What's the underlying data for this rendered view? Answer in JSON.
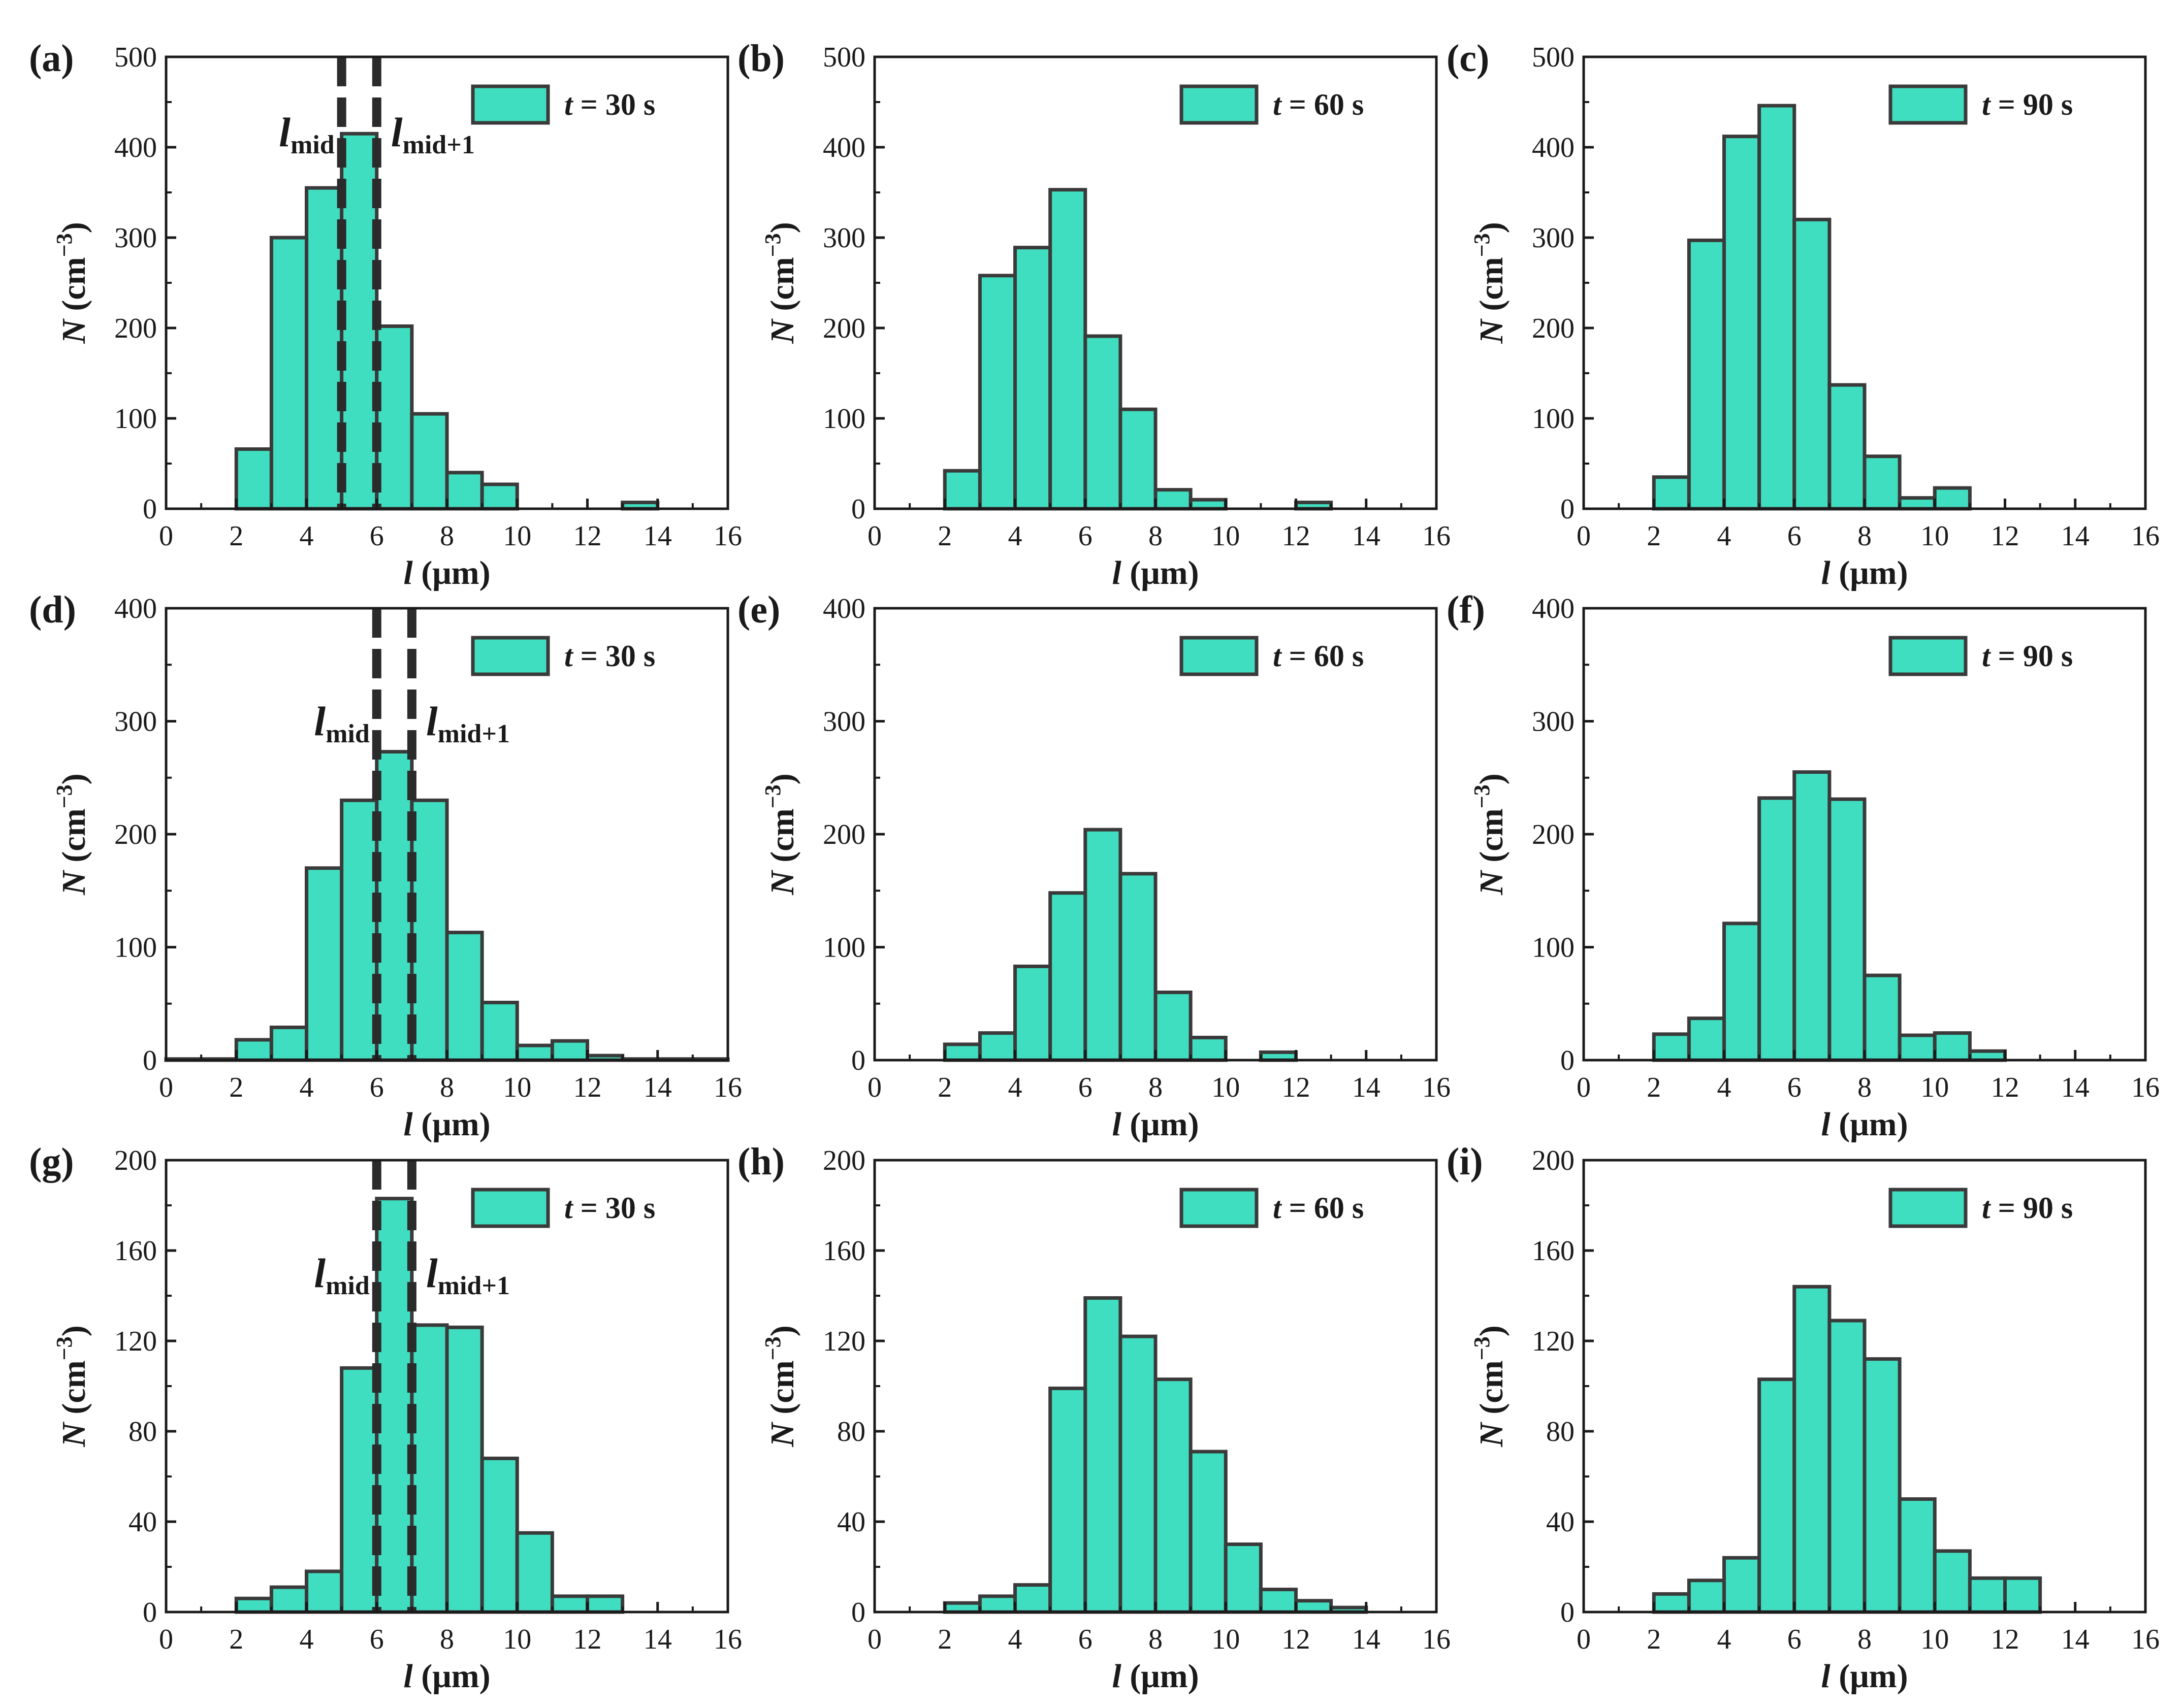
{
  "chart_data": [
    {
      "id": "a",
      "panel_label": "(a)",
      "type": "bar",
      "title": "",
      "xlabel_var": "l",
      "xlabel_unit": " (μm)",
      "ylabel_var": "N",
      "ylabel_unit": " (cm",
      "ylabel_exp": "−3",
      "ylabel_close": ")",
      "xlim": [
        0,
        16
      ],
      "ylim": [
        0,
        500
      ],
      "xticks": [
        "0",
        "2",
        "4",
        "6",
        "8",
        "10",
        "12",
        "14",
        "16"
      ],
      "yticks": [
        "0",
        "100",
        "200",
        "300",
        "400",
        "500"
      ],
      "bin_width": 1,
      "bins": [
        {
          "start": 2,
          "value": 66
        },
        {
          "start": 3,
          "value": 300
        },
        {
          "start": 4,
          "value": 355
        },
        {
          "start": 5,
          "value": 415
        },
        {
          "start": 6,
          "value": 202
        },
        {
          "start": 7,
          "value": 105
        },
        {
          "start": 8,
          "value": 40
        },
        {
          "start": 9,
          "value": 27
        },
        {
          "start": 13,
          "value": 7
        }
      ],
      "legend": {
        "var": "t",
        "text": " = 30 s",
        "position": "top-right"
      },
      "annotation": {
        "lmid_x": 5,
        "lmid1_x": 6,
        "lmid_label": "l",
        "lmid_sub": "mid",
        "lmid1_label": "l",
        "lmid1_sub": "mid+1"
      }
    },
    {
      "id": "b",
      "panel_label": "(b)",
      "type": "bar",
      "title": "",
      "xlabel_var": "l",
      "xlabel_unit": " (μm)",
      "ylabel_var": "N",
      "ylabel_unit": " (cm",
      "ylabel_exp": "−3",
      "ylabel_close": ")",
      "xlim": [
        0,
        16
      ],
      "ylim": [
        0,
        500
      ],
      "xticks": [
        "0",
        "2",
        "4",
        "6",
        "8",
        "10",
        "12",
        "14",
        "16"
      ],
      "yticks": [
        "0",
        "100",
        "200",
        "300",
        "400",
        "500"
      ],
      "bin_width": 1,
      "bins": [
        {
          "start": 2,
          "value": 42
        },
        {
          "start": 3,
          "value": 258
        },
        {
          "start": 4,
          "value": 289
        },
        {
          "start": 5,
          "value": 353
        },
        {
          "start": 6,
          "value": 191
        },
        {
          "start": 7,
          "value": 110
        },
        {
          "start": 8,
          "value": 21
        },
        {
          "start": 9,
          "value": 10
        },
        {
          "start": 12,
          "value": 7
        }
      ],
      "legend": {
        "var": "t",
        "text": " = 60 s",
        "position": "top-right"
      }
    },
    {
      "id": "c",
      "panel_label": "(c)",
      "type": "bar",
      "title": "",
      "xlabel_var": "l",
      "xlabel_unit": " (μm)",
      "ylabel_var": "N",
      "ylabel_unit": " (cm",
      "ylabel_exp": "−3",
      "ylabel_close": ")",
      "xlim": [
        0,
        16
      ],
      "ylim": [
        0,
        500
      ],
      "xticks": [
        "0",
        "2",
        "4",
        "6",
        "8",
        "10",
        "12",
        "14",
        "16"
      ],
      "yticks": [
        "0",
        "100",
        "200",
        "300",
        "400",
        "500"
      ],
      "bin_width": 1,
      "bins": [
        {
          "start": 2,
          "value": 35
        },
        {
          "start": 3,
          "value": 297
        },
        {
          "start": 4,
          "value": 412
        },
        {
          "start": 5,
          "value": 446
        },
        {
          "start": 6,
          "value": 320
        },
        {
          "start": 7,
          "value": 137
        },
        {
          "start": 8,
          "value": 58
        },
        {
          "start": 9,
          "value": 12
        },
        {
          "start": 10,
          "value": 23
        }
      ],
      "legend": {
        "var": "t",
        "text": " = 90 s",
        "position": "top-right"
      }
    },
    {
      "id": "d",
      "panel_label": "(d)",
      "type": "bar",
      "title": "",
      "xlabel_var": "l",
      "xlabel_unit": " (μm)",
      "ylabel_var": "N",
      "ylabel_unit": " (cm",
      "ylabel_exp": "−3",
      "ylabel_close": ")",
      "xlim": [
        0,
        16
      ],
      "ylim": [
        0,
        400
      ],
      "xticks": [
        "0",
        "2",
        "4",
        "6",
        "8",
        "10",
        "12",
        "14",
        "16"
      ],
      "yticks": [
        "0",
        "100",
        "200",
        "300",
        "400"
      ],
      "bin_width": 1,
      "bins": [
        {
          "start": 0,
          "value": 1
        },
        {
          "start": 1,
          "value": 1
        },
        {
          "start": 2,
          "value": 18
        },
        {
          "start": 3,
          "value": 29
        },
        {
          "start": 4,
          "value": 170
        },
        {
          "start": 5,
          "value": 230
        },
        {
          "start": 6,
          "value": 273
        },
        {
          "start": 7,
          "value": 230
        },
        {
          "start": 8,
          "value": 113
        },
        {
          "start": 9,
          "value": 51
        },
        {
          "start": 10,
          "value": 13
        },
        {
          "start": 11,
          "value": 17
        },
        {
          "start": 12,
          "value": 4
        },
        {
          "start": 13,
          "value": 1
        },
        {
          "start": 14,
          "value": 1
        },
        {
          "start": 15,
          "value": 1
        }
      ],
      "legend": {
        "var": "t",
        "text": " = 30 s",
        "position": "top-right"
      },
      "annotation": {
        "lmid_x": 6,
        "lmid1_x": 7,
        "lmid_label": "l",
        "lmid_sub": "mid",
        "lmid1_label": "l",
        "lmid1_sub": "mid+1"
      }
    },
    {
      "id": "e",
      "panel_label": "(e)",
      "type": "bar",
      "title": "",
      "xlabel_var": "l",
      "xlabel_unit": " (μm)",
      "ylabel_var": "N",
      "ylabel_unit": " (cm",
      "ylabel_exp": "−3",
      "ylabel_close": ")",
      "xlim": [
        0,
        16
      ],
      "ylim": [
        0,
        400
      ],
      "xticks": [
        "0",
        "2",
        "4",
        "6",
        "8",
        "10",
        "12",
        "14",
        "16"
      ],
      "yticks": [
        "0",
        "100",
        "200",
        "300",
        "400"
      ],
      "bin_width": 1,
      "bins": [
        {
          "start": 2,
          "value": 14
        },
        {
          "start": 3,
          "value": 24
        },
        {
          "start": 4,
          "value": 83
        },
        {
          "start": 5,
          "value": 148
        },
        {
          "start": 6,
          "value": 204
        },
        {
          "start": 7,
          "value": 165
        },
        {
          "start": 8,
          "value": 60
        },
        {
          "start": 9,
          "value": 20
        },
        {
          "start": 11,
          "value": 7
        }
      ],
      "legend": {
        "var": "t",
        "text": " = 60 s",
        "position": "top-right"
      }
    },
    {
      "id": "f",
      "panel_label": "(f)",
      "type": "bar",
      "title": "",
      "xlabel_var": "l",
      "xlabel_unit": " (μm)",
      "ylabel_var": "N",
      "ylabel_unit": " (cm",
      "ylabel_exp": "−3",
      "ylabel_close": ")",
      "xlim": [
        0,
        16
      ],
      "ylim": [
        0,
        400
      ],
      "xticks": [
        "0",
        "2",
        "4",
        "6",
        "8",
        "10",
        "12",
        "14",
        "16"
      ],
      "yticks": [
        "0",
        "100",
        "200",
        "300",
        "400"
      ],
      "bin_width": 1,
      "bins": [
        {
          "start": 2,
          "value": 23
        },
        {
          "start": 3,
          "value": 37
        },
        {
          "start": 4,
          "value": 121
        },
        {
          "start": 5,
          "value": 232
        },
        {
          "start": 6,
          "value": 255
        },
        {
          "start": 7,
          "value": 231
        },
        {
          "start": 8,
          "value": 75
        },
        {
          "start": 9,
          "value": 22
        },
        {
          "start": 10,
          "value": 24
        },
        {
          "start": 11,
          "value": 8
        }
      ],
      "legend": {
        "var": "t",
        "text": " = 90 s",
        "position": "top-right"
      }
    },
    {
      "id": "g",
      "panel_label": "(g)",
      "type": "bar",
      "title": "",
      "xlabel_var": "l",
      "xlabel_unit": " (μm)",
      "ylabel_var": "N",
      "ylabel_unit": " (cm",
      "ylabel_exp": "−3",
      "ylabel_close": ")",
      "xlim": [
        0,
        16
      ],
      "ylim": [
        0,
        200
      ],
      "xticks": [
        "0",
        "2",
        "4",
        "6",
        "8",
        "10",
        "12",
        "14",
        "16"
      ],
      "yticks": [
        "0",
        "40",
        "80",
        "120",
        "160",
        "200"
      ],
      "bin_width": 1,
      "bins": [
        {
          "start": 2,
          "value": 6
        },
        {
          "start": 3,
          "value": 11
        },
        {
          "start": 4,
          "value": 18
        },
        {
          "start": 5,
          "value": 108
        },
        {
          "start": 6,
          "value": 183
        },
        {
          "start": 7,
          "value": 127
        },
        {
          "start": 8,
          "value": 126
        },
        {
          "start": 9,
          "value": 68
        },
        {
          "start": 10,
          "value": 35
        },
        {
          "start": 11,
          "value": 7
        },
        {
          "start": 12,
          "value": 7
        }
      ],
      "legend": {
        "var": "t",
        "text": " = 30 s",
        "position": "top-right"
      },
      "annotation": {
        "lmid_x": 6,
        "lmid1_x": 7,
        "lmid_label": "l",
        "lmid_sub": "mid",
        "lmid1_label": "l",
        "lmid1_sub": "mid+1"
      }
    },
    {
      "id": "h",
      "panel_label": "(h)",
      "type": "bar",
      "title": "",
      "xlabel_var": "l",
      "xlabel_unit": " (μm)",
      "ylabel_var": "N",
      "ylabel_unit": " (cm",
      "ylabel_exp": "−3",
      "ylabel_close": ")",
      "xlim": [
        0,
        16
      ],
      "ylim": [
        0,
        200
      ],
      "xticks": [
        "0",
        "2",
        "4",
        "6",
        "8",
        "10",
        "12",
        "14",
        "16"
      ],
      "yticks": [
        "0",
        "40",
        "80",
        "120",
        "160",
        "200"
      ],
      "bin_width": 1,
      "bins": [
        {
          "start": 2,
          "value": 4
        },
        {
          "start": 3,
          "value": 7
        },
        {
          "start": 4,
          "value": 12
        },
        {
          "start": 5,
          "value": 99
        },
        {
          "start": 6,
          "value": 139
        },
        {
          "start": 7,
          "value": 122
        },
        {
          "start": 8,
          "value": 103
        },
        {
          "start": 9,
          "value": 71
        },
        {
          "start": 10,
          "value": 30
        },
        {
          "start": 11,
          "value": 10
        },
        {
          "start": 12,
          "value": 5
        },
        {
          "start": 13,
          "value": 2
        }
      ],
      "legend": {
        "var": "t",
        "text": " = 60 s",
        "position": "top-right"
      }
    },
    {
      "id": "i",
      "panel_label": "(i)",
      "type": "bar",
      "title": "",
      "xlabel_var": "l",
      "xlabel_unit": " (μm)",
      "ylabel_var": "N",
      "ylabel_unit": " (cm",
      "ylabel_exp": "−3",
      "ylabel_close": ")",
      "xlim": [
        0,
        16
      ],
      "ylim": [
        0,
        200
      ],
      "xticks": [
        "0",
        "2",
        "4",
        "6",
        "8",
        "10",
        "12",
        "14",
        "16"
      ],
      "yticks": [
        "0",
        "40",
        "80",
        "120",
        "160",
        "200"
      ],
      "bin_width": 1,
      "bins": [
        {
          "start": 2,
          "value": 8
        },
        {
          "start": 3,
          "value": 14
        },
        {
          "start": 4,
          "value": 24
        },
        {
          "start": 5,
          "value": 103
        },
        {
          "start": 6,
          "value": 144
        },
        {
          "start": 7,
          "value": 129
        },
        {
          "start": 8,
          "value": 112
        },
        {
          "start": 9,
          "value": 50
        },
        {
          "start": 10,
          "value": 27
        },
        {
          "start": 11,
          "value": 15
        },
        {
          "start": 12,
          "value": 15
        }
      ],
      "legend": {
        "var": "t",
        "text": " = 90 s",
        "position": "top-right"
      }
    }
  ],
  "colors": {
    "bar_fill": "#40DEC0",
    "bar_stroke": "#3a3a3a",
    "axis": "#1a1a1a",
    "dashed_line": "#2b2b2b"
  }
}
